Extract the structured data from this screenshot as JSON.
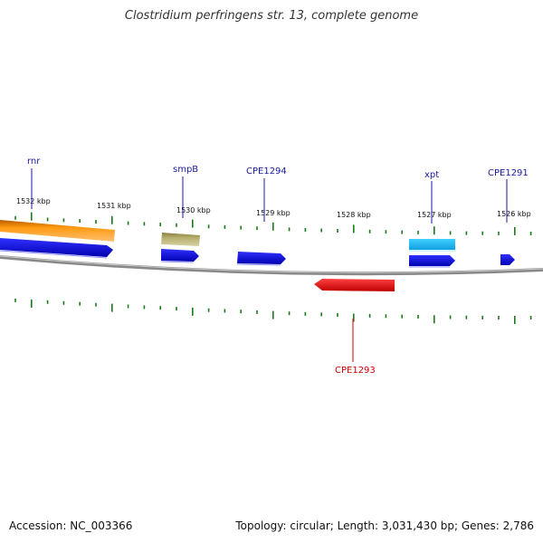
{
  "title": "Clostridium perfringens str. 13, complete genome",
  "footer": {
    "accession": "Accession: NC_003366",
    "summary": "Topology: circular; Length: 3,031,430 bp; Genes: 2,786"
  },
  "kbp_labels": [
    "1532 kbp",
    "1531 kbp",
    "1530 kbp",
    "1529 kbp",
    "1528 kbp",
    "1527 kbp",
    "1526 kbp"
  ],
  "gene_labels": {
    "rnr": "rnr",
    "smpB": "smpB",
    "CPE1294": "CPE1294",
    "xpt": "xpt",
    "CPE1291": "CPE1291",
    "CPE1293": "CPE1293"
  },
  "colors": {
    "cds": "#1010e0",
    "rrna": "#ff8c00",
    "trna_like": "#a8a060",
    "highlight": "#20c0f0",
    "reverse": "#ee0000",
    "label_forward": "#1a1aa0",
    "label_reverse": "#cc0000",
    "ticks": "#1a7a1a",
    "backbone": "#888888"
  }
}
